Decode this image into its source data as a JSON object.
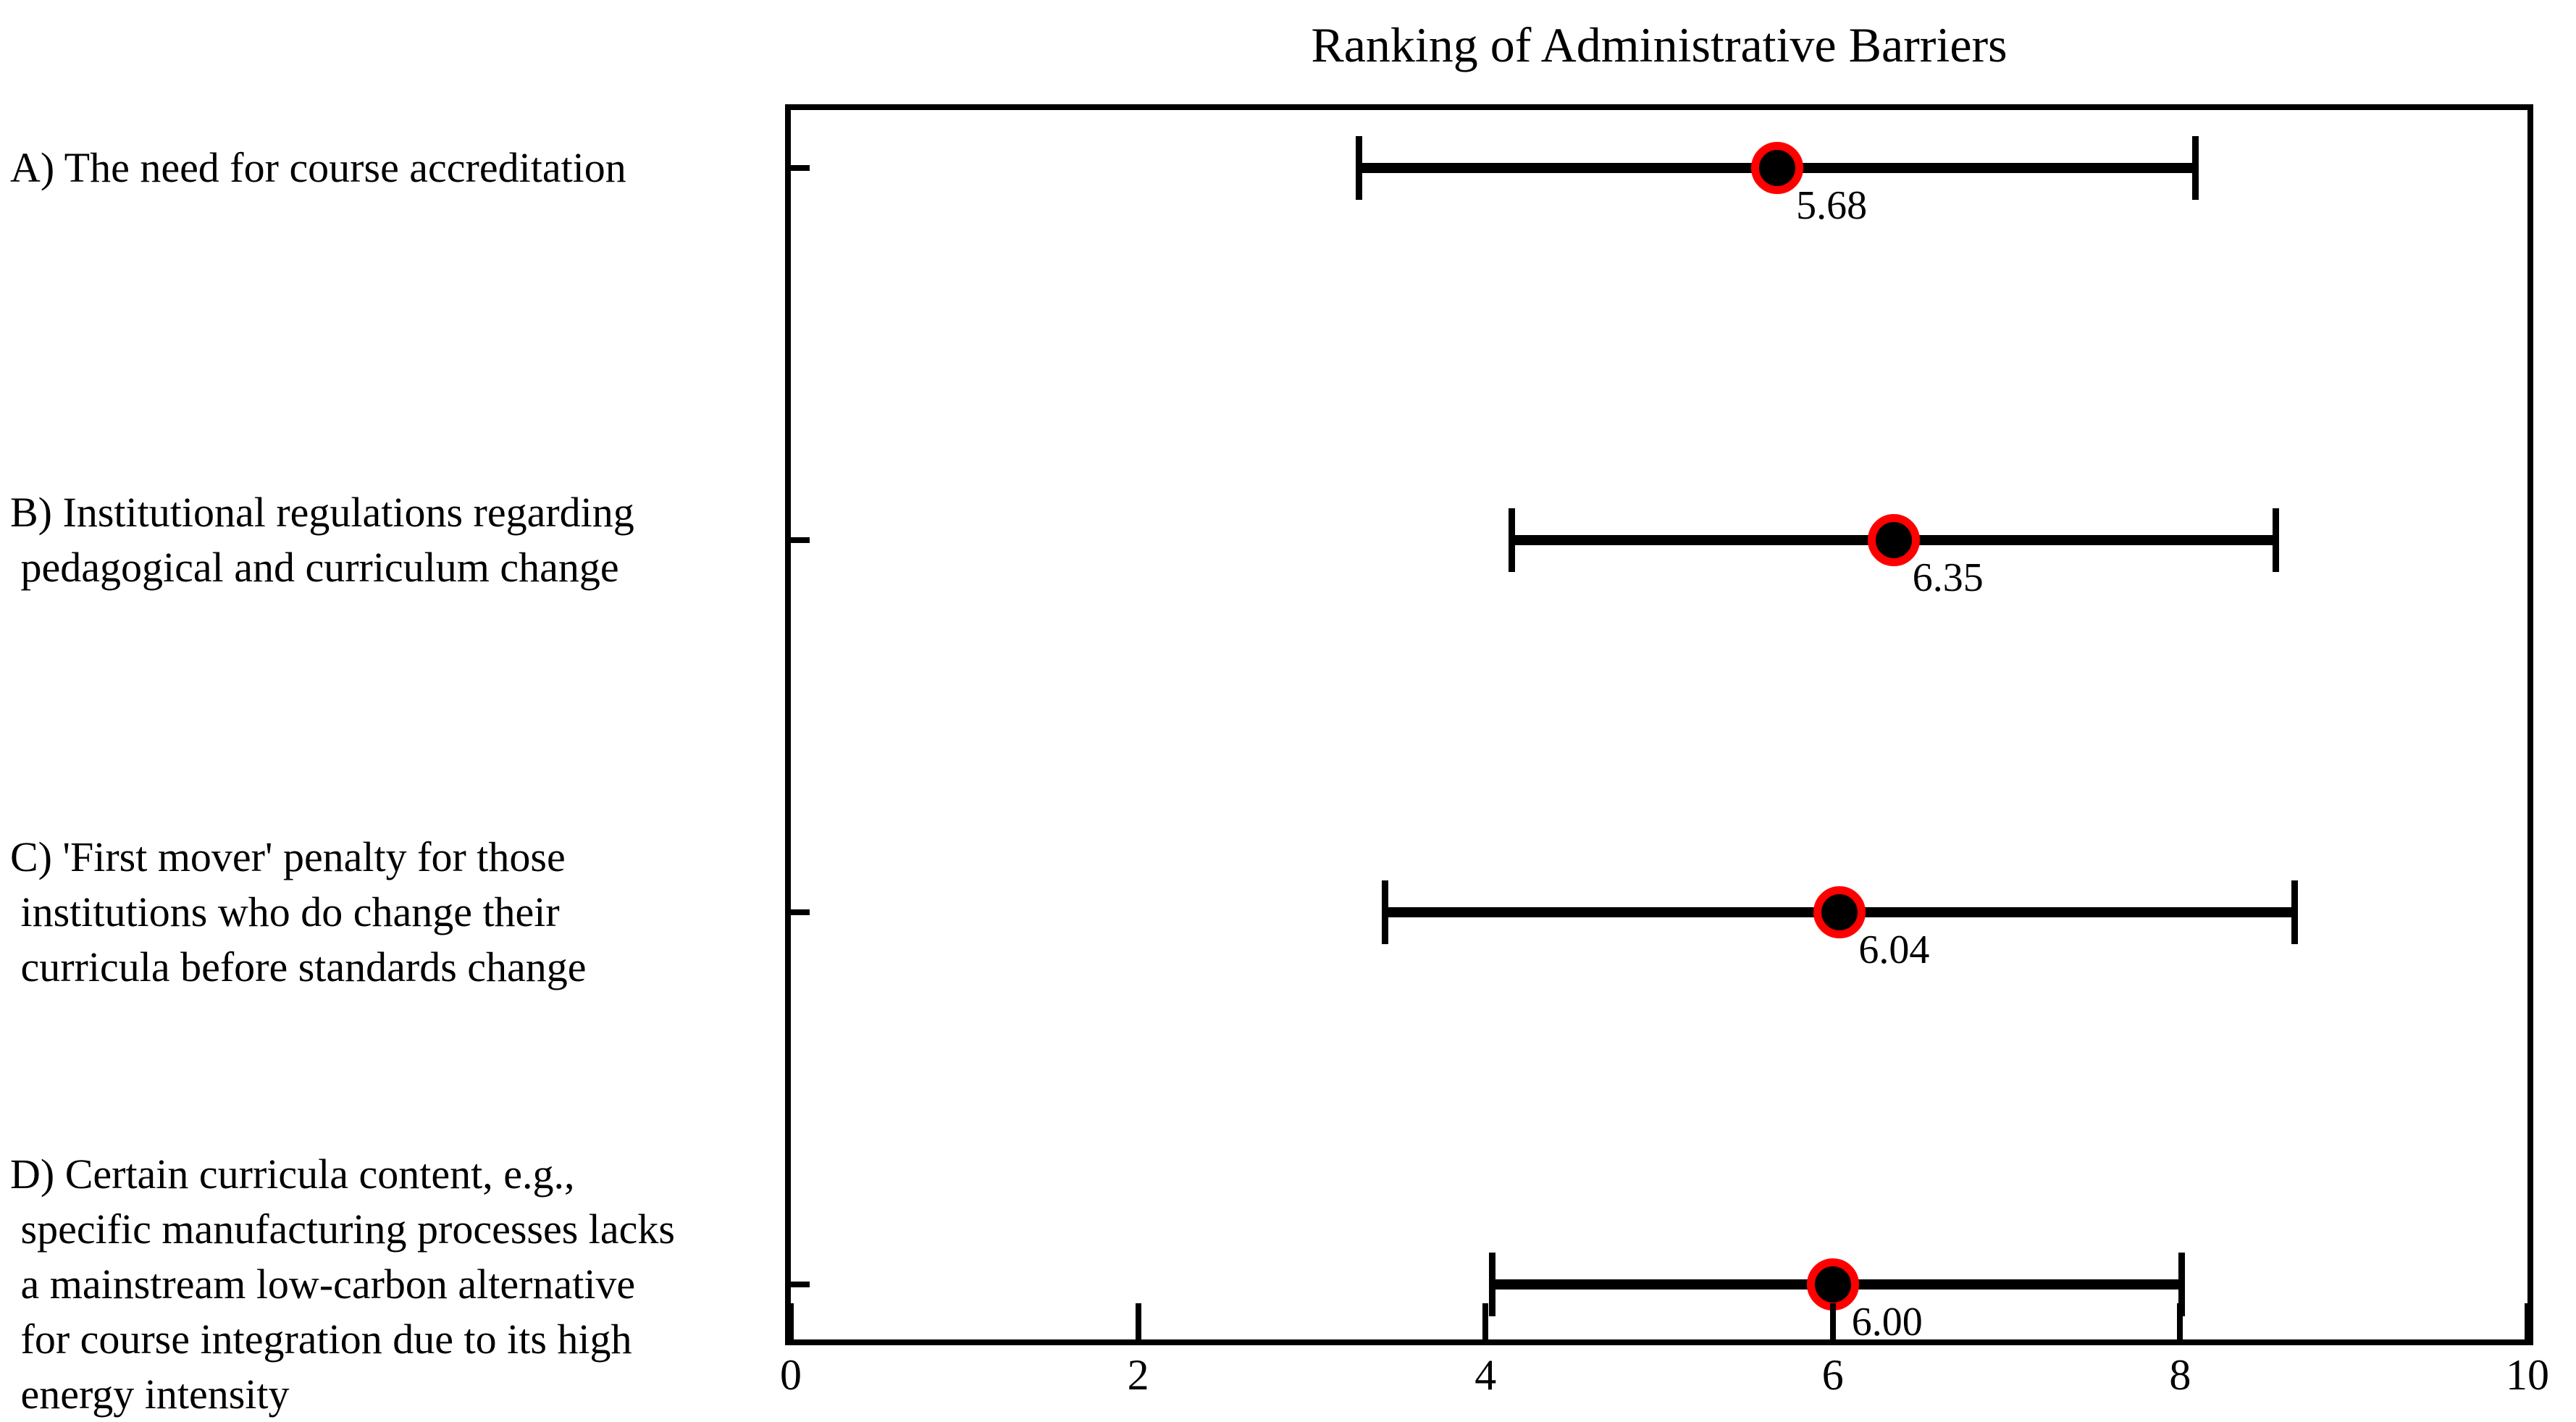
{
  "chart_data": {
    "type": "scatter",
    "title": "Ranking of Administrative Barriers",
    "xlabel": "",
    "ylabel": "",
    "xlim": [
      0,
      10
    ],
    "x_ticks": [
      "0",
      "2",
      "4",
      "6",
      "8",
      "10"
    ],
    "x_tick_values": [
      0,
      2,
      4,
      6,
      8,
      10
    ],
    "grid": false,
    "legend": "none",
    "marker_style": {
      "fill_color": "#000000",
      "ring_color": "#ff0000",
      "bar_color": "#000000"
    },
    "rows": [
      {
        "id": "A",
        "label_lines": [
          "A) The need for course accreditation"
        ],
        "value": 5.68,
        "value_label": "5.68",
        "bar_min": 3.27,
        "bar_max": 8.09
      },
      {
        "id": "B",
        "label_lines": [
          "B) Institutional regulations regarding",
          " pedagogical and curriculum change"
        ],
        "value": 6.35,
        "value_label": "6.35",
        "bar_min": 4.15,
        "bar_max": 8.55
      },
      {
        "id": "C",
        "label_lines": [
          "C) 'First mover' penalty for those",
          " institutions who do change their",
          " curricula before standards change"
        ],
        "value": 6.04,
        "value_label": "6.04",
        "bar_min": 3.42,
        "bar_max": 8.66
      },
      {
        "id": "D",
        "label_lines": [
          "D) Certain curricula content, e.g.,",
          " specific manufacturing processes lacks",
          " a mainstream low-carbon alternative",
          " for course integration due to its high",
          " energy intensity"
        ],
        "value": 6.0,
        "value_label": "6.00",
        "bar_min": 4.04,
        "bar_max": 8.01
      }
    ]
  }
}
